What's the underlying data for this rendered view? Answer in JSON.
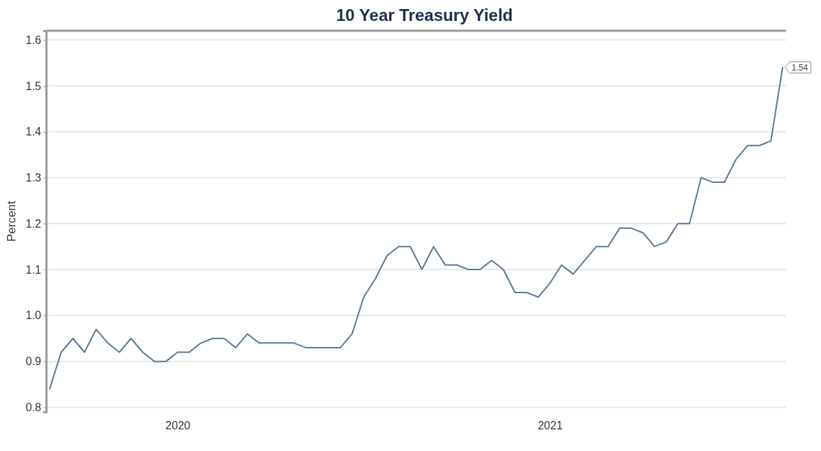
{
  "chart_data": {
    "type": "line",
    "title": "10 Year Treasury Yield",
    "ylabel": "Percent",
    "categories": [
      null,
      null,
      null,
      null,
      null,
      null,
      null,
      null,
      null,
      null,
      null,
      "2020",
      null,
      null,
      null,
      null,
      null,
      null,
      null,
      null,
      null,
      null,
      null,
      null,
      null,
      null,
      null,
      null,
      null,
      null,
      null,
      null,
      null,
      null,
      null,
      null,
      null,
      null,
      null,
      null,
      null,
      null,
      null,
      "2021",
      null,
      null,
      null,
      null,
      null,
      null,
      null,
      null,
      null,
      null,
      null,
      null,
      null,
      null,
      null,
      null,
      null,
      null,
      null,
      null
    ],
    "series": [
      {
        "color": "#5a7896",
        "values": [
          0.84,
          0.92,
          0.95,
          0.92,
          0.97,
          0.94,
          0.92,
          0.95,
          0.92,
          0.9,
          0.9,
          0.92,
          0.92,
          0.94,
          0.95,
          0.95,
          0.93,
          0.96,
          0.94,
          0.94,
          0.94,
          0.94,
          0.93,
          0.93,
          0.93,
          0.93,
          0.96,
          1.04,
          1.08,
          1.13,
          1.15,
          1.15,
          1.1,
          1.15,
          1.11,
          1.11,
          1.1,
          1.1,
          1.12,
          1.1,
          1.05,
          1.05,
          1.04,
          1.07,
          1.11,
          1.09,
          1.12,
          1.15,
          1.15,
          1.19,
          1.19,
          1.18,
          1.15,
          1.16,
          1.2,
          1.2,
          1.3,
          1.29,
          1.29,
          1.34,
          1.37,
          1.37,
          1.38,
          1.54
        ],
        "value_labels": [
          null,
          null,
          null,
          null,
          null,
          null,
          null,
          null,
          null,
          null,
          null,
          null,
          null,
          null,
          null,
          null,
          null,
          null,
          null,
          null,
          null,
          null,
          null,
          null,
          null,
          null,
          null,
          null,
          null,
          null,
          null,
          null,
          null,
          null,
          null,
          null,
          null,
          null,
          null,
          null,
          null,
          null,
          null,
          null,
          null,
          null,
          null,
          null,
          null,
          null,
          null,
          null,
          null,
          null,
          null,
          null,
          null,
          null,
          null,
          null,
          null,
          null,
          null,
          "1.54"
        ]
      }
    ],
    "ylim": [
      0.79,
      1.62
    ],
    "yticks": [
      {
        "value": 0.8,
        "label": "0.8"
      },
      {
        "value": 0.9,
        "label": "0.9"
      },
      {
        "value": 1.0,
        "label": "1.0"
      },
      {
        "value": 1.1,
        "label": "1.1"
      },
      {
        "value": 1.2,
        "label": "1.2"
      },
      {
        "value": 1.3,
        "label": "1.3"
      },
      {
        "value": 1.4,
        "label": "1.4"
      },
      {
        "value": 1.5,
        "label": "1.5"
      },
      {
        "value": 1.6,
        "label": "1.6"
      }
    ],
    "grid": "y",
    "marker": "none",
    "line_style": "solid"
  }
}
